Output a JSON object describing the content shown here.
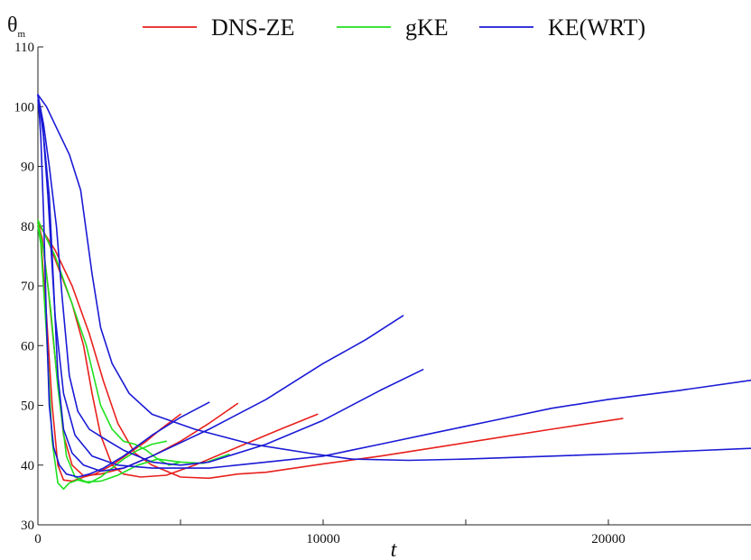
{
  "chart_data": {
    "type": "line",
    "xlabel": "t",
    "ylabel_main": "θ",
    "ylabel_sub": "m",
    "xlim": [
      0,
      25000
    ],
    "ylim": [
      30,
      110
    ],
    "x_ticks": [
      0,
      10000,
      20000
    ],
    "x_minor_ticks": [
      5000,
      15000
    ],
    "y_ticks": [
      30,
      40,
      50,
      60,
      70,
      80,
      90,
      100,
      110
    ],
    "grid": false,
    "legend_position": "top",
    "legend": [
      {
        "label": "DNS-ZE",
        "color": "#e8201c"
      },
      {
        "label": "gKE",
        "color": "#1fe01f"
      },
      {
        "label": "KE(WRT)",
        "color": "#1a1ad6"
      }
    ],
    "series": [
      {
        "group": "DNS-ZE",
        "color": "#e8201c",
        "points": [
          [
            0,
            80
          ],
          [
            100,
            78
          ],
          [
            300,
            65
          ],
          [
            500,
            50
          ],
          [
            700,
            40
          ],
          [
            900,
            37.5
          ],
          [
            1200,
            37.3
          ],
          [
            1600,
            38
          ],
          [
            2000,
            38.5
          ],
          [
            2600,
            40
          ],
          [
            3200,
            42
          ],
          [
            3800,
            44
          ],
          [
            4300,
            46
          ],
          [
            5000,
            48.5
          ]
        ]
      },
      {
        "group": "DNS-ZE",
        "color": "#e8201c",
        "points": [
          [
            0,
            80.5
          ],
          [
            150,
            78
          ],
          [
            350,
            70
          ],
          [
            600,
            58
          ],
          [
            900,
            45
          ],
          [
            1200,
            40
          ],
          [
            1600,
            38.2
          ],
          [
            2200,
            38.5
          ],
          [
            3000,
            39.5
          ],
          [
            4000,
            41.5
          ],
          [
            5000,
            44
          ],
          [
            6000,
            47
          ],
          [
            7000,
            50.3
          ]
        ]
      },
      {
        "group": "DNS-ZE",
        "color": "#e8201c",
        "points": [
          [
            0,
            81
          ],
          [
            400,
            77
          ],
          [
            800,
            72
          ],
          [
            1200,
            67
          ],
          [
            1600,
            60
          ],
          [
            1900,
            52
          ],
          [
            2200,
            45
          ],
          [
            2600,
            40
          ],
          [
            3000,
            38.5
          ],
          [
            3600,
            38
          ],
          [
            4500,
            38.3
          ],
          [
            5500,
            40
          ],
          [
            6500,
            42
          ],
          [
            7500,
            44
          ],
          [
            8500,
            46
          ],
          [
            9800,
            48.5
          ]
        ]
      },
      {
        "group": "DNS-ZE",
        "color": "#e8201c",
        "points": [
          [
            0,
            80.5
          ],
          [
            600,
            76
          ],
          [
            1200,
            70
          ],
          [
            1800,
            62
          ],
          [
            2300,
            54
          ],
          [
            2800,
            47
          ],
          [
            3400,
            42
          ],
          [
            4000,
            40
          ],
          [
            5000,
            38
          ],
          [
            6000,
            37.8
          ],
          [
            7000,
            38.5
          ],
          [
            8000,
            38.8
          ],
          [
            9000,
            39.5
          ],
          [
            10000,
            40.2
          ],
          [
            12000,
            41.5
          ],
          [
            14000,
            43
          ],
          [
            16000,
            44.5
          ],
          [
            18000,
            46
          ],
          [
            20500,
            47.8
          ]
        ]
      },
      {
        "group": "gKE",
        "color": "#1fe01f",
        "points": [
          [
            0,
            80
          ],
          [
            100,
            77
          ],
          [
            300,
            62
          ],
          [
            500,
            44
          ],
          [
            700,
            37
          ],
          [
            900,
            36
          ],
          [
            1100,
            37
          ],
          [
            1400,
            37.5
          ],
          [
            1800,
            37
          ],
          [
            2200,
            38
          ],
          [
            2600,
            39.5
          ],
          [
            3000,
            41
          ],
          [
            3500,
            42.5
          ],
          [
            4000,
            43.5
          ],
          [
            4500,
            44
          ]
        ]
      },
      {
        "group": "gKE",
        "color": "#1fe01f",
        "points": [
          [
            0,
            80.5
          ],
          [
            200,
            76
          ],
          [
            450,
            66
          ],
          [
            700,
            53
          ],
          [
            1000,
            41.5
          ],
          [
            1300,
            38
          ],
          [
            1700,
            37.2
          ],
          [
            2200,
            37.3
          ],
          [
            2800,
            38.3
          ],
          [
            3500,
            40
          ],
          [
            4200,
            41
          ],
          [
            5000,
            40.5
          ],
          [
            5800,
            40.3
          ],
          [
            6700,
            41.8
          ]
        ]
      },
      {
        "group": "gKE",
        "color": "#1fe01f",
        "points": [
          [
            0,
            81
          ],
          [
            600,
            75
          ],
          [
            1200,
            67
          ],
          [
            1700,
            60
          ],
          [
            2200,
            50
          ],
          [
            2600,
            46
          ],
          [
            3000,
            44
          ],
          [
            3400,
            43.5
          ],
          [
            3800,
            42.5
          ],
          [
            4200,
            41
          ],
          [
            4600,
            40
          ],
          [
            5000,
            40.5
          ]
        ]
      },
      {
        "group": "KE(WRT)",
        "color": "#1a1ad6",
        "points": [
          [
            0,
            102
          ],
          [
            100,
            95
          ],
          [
            200,
            82
          ],
          [
            300,
            64
          ],
          [
            400,
            50
          ],
          [
            550,
            43
          ],
          [
            750,
            40
          ],
          [
            1000,
            38.5
          ],
          [
            1400,
            38
          ],
          [
            1800,
            38.5
          ],
          [
            2300,
            39.5
          ],
          [
            3000,
            41.5
          ],
          [
            4000,
            45
          ],
          [
            5000,
            48
          ],
          [
            6000,
            50.5
          ]
        ]
      },
      {
        "group": "KE(WRT)",
        "color": "#1a1ad6",
        "points": [
          [
            0,
            102
          ],
          [
            200,
            95
          ],
          [
            400,
            85
          ],
          [
            550,
            70
          ],
          [
            700,
            55
          ],
          [
            900,
            46
          ],
          [
            1200,
            42
          ],
          [
            1600,
            40
          ],
          [
            2200,
            39
          ],
          [
            3000,
            39.5
          ],
          [
            4000,
            41.5
          ],
          [
            6000,
            46
          ],
          [
            8000,
            51
          ],
          [
            10000,
            57
          ],
          [
            11500,
            61
          ],
          [
            12800,
            65
          ]
        ]
      },
      {
        "group": "KE(WRT)",
        "color": "#1a1ad6",
        "points": [
          [
            0,
            102
          ],
          [
            200,
            97
          ],
          [
            400,
            90
          ],
          [
            650,
            80
          ],
          [
            850,
            68
          ],
          [
            1100,
            55
          ],
          [
            1400,
            49
          ],
          [
            1800,
            46
          ],
          [
            2300,
            44.5
          ],
          [
            3000,
            42.5
          ],
          [
            4000,
            40.5
          ],
          [
            5000,
            40
          ],
          [
            6000,
            40.5
          ],
          [
            8000,
            43.5
          ],
          [
            10000,
            47.5
          ],
          [
            12000,
            52.5
          ],
          [
            13500,
            56
          ]
        ]
      },
      {
        "group": "KE(WRT)",
        "color": "#1a1ad6",
        "points": [
          [
            0,
            102
          ],
          [
            300,
            100
          ],
          [
            700,
            96
          ],
          [
            1100,
            92
          ],
          [
            1500,
            86
          ],
          [
            1900,
            72
          ],
          [
            2200,
            63
          ],
          [
            2600,
            57
          ],
          [
            3200,
            52
          ],
          [
            4000,
            48.5
          ],
          [
            5500,
            46
          ],
          [
            7500,
            43.5
          ],
          [
            9500,
            42
          ],
          [
            11000,
            41
          ],
          [
            13000,
            40.8
          ],
          [
            15000,
            41
          ],
          [
            18000,
            41.5
          ],
          [
            21000,
            42
          ],
          [
            25000,
            42.8
          ]
        ]
      },
      {
        "group": "KE(WRT)",
        "color": "#1a1ad6",
        "points": [
          [
            0,
            101
          ],
          [
            150,
            98
          ],
          [
            350,
            85
          ],
          [
            600,
            65
          ],
          [
            900,
            52
          ],
          [
            1300,
            45
          ],
          [
            1900,
            41.5
          ],
          [
            2800,
            40
          ],
          [
            4000,
            39.5
          ],
          [
            6000,
            39.5
          ],
          [
            8000,
            40.5
          ],
          [
            10000,
            41.5
          ],
          [
            12000,
            43.5
          ],
          [
            14000,
            45.5
          ],
          [
            16000,
            47.5
          ],
          [
            18000,
            49.5
          ],
          [
            20000,
            51
          ],
          [
            22500,
            52.5
          ],
          [
            25000,
            54.2
          ]
        ]
      }
    ]
  }
}
